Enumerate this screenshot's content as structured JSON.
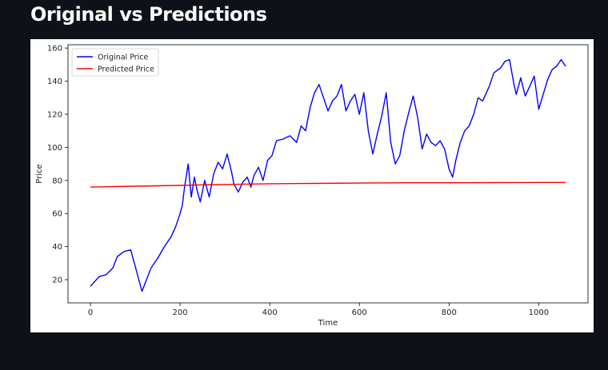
{
  "page": {
    "title": "Original vs Predictions"
  },
  "chart_data": {
    "type": "line",
    "xlabel": "Time",
    "ylabel": "Price",
    "xlim": [
      -50,
      1110
    ],
    "ylim": [
      6,
      162
    ],
    "xticks": [
      0,
      200,
      400,
      600,
      800,
      1000
    ],
    "yticks": [
      20,
      40,
      60,
      80,
      100,
      120,
      140,
      160
    ],
    "legend": {
      "placement": "top-left"
    },
    "grid": false,
    "series": [
      {
        "name": "Original Price",
        "color": "#0000ff",
        "x": [
          0,
          10,
          20,
          35,
          50,
          60,
          75,
          90,
          100,
          108,
          115,
          125,
          135,
          150,
          165,
          180,
          190,
          200,
          205,
          210,
          218,
          225,
          232,
          238,
          245,
          255,
          265,
          275,
          285,
          295,
          305,
          315,
          320,
          330,
          340,
          350,
          358,
          365,
          375,
          385,
          395,
          405,
          415,
          430,
          445,
          460,
          470,
          480,
          490,
          500,
          510,
          520,
          530,
          540,
          550,
          560,
          570,
          580,
          590,
          600,
          610,
          620,
          630,
          640,
          650,
          660,
          670,
          680,
          690,
          700,
          710,
          720,
          730,
          740,
          750,
          760,
          770,
          780,
          790,
          800,
          808,
          815,
          825,
          835,
          845,
          855,
          865,
          875,
          890,
          900,
          915,
          925,
          935,
          945,
          950,
          960,
          970,
          980,
          990,
          1000,
          1010,
          1020,
          1030,
          1040,
          1050,
          1060
        ],
        "values": [
          16,
          19,
          22,
          23,
          27,
          34,
          37,
          38,
          28,
          20,
          13,
          20,
          27,
          33,
          40,
          46,
          52,
          60,
          65,
          76,
          90,
          70,
          82,
          74,
          67,
          80,
          70,
          84,
          91,
          87,
          96,
          85,
          78,
          73,
          79,
          82,
          76,
          83,
          88,
          80,
          92,
          95,
          104,
          105,
          107,
          103,
          113,
          110,
          124,
          133,
          138,
          130,
          122,
          128,
          131,
          138,
          122,
          128,
          132,
          120,
          133,
          110,
          96,
          108,
          119,
          133,
          103,
          90,
          95,
          110,
          121,
          131,
          118,
          99,
          108,
          103,
          101,
          104,
          99,
          87,
          82,
          92,
          103,
          110,
          113,
          120,
          130,
          128,
          137,
          145,
          148,
          152,
          153,
          138,
          132,
          142,
          131,
          137,
          143,
          123,
          132,
          141,
          147,
          149,
          153,
          149
        ]
      },
      {
        "name": "Predicted Price",
        "color": "#ff0000",
        "x": [
          0,
          100,
          200,
          300,
          400,
          500,
          600,
          700,
          800,
          900,
          1000,
          1060
        ],
        "values": [
          76,
          76.5,
          77,
          77.6,
          78,
          78.2,
          78.4,
          78.6,
          78.6,
          78.7,
          78.8,
          78.8
        ]
      }
    ]
  }
}
